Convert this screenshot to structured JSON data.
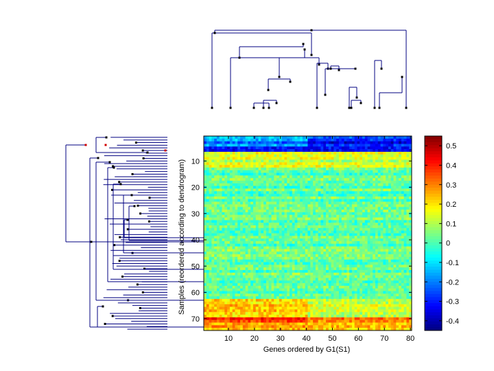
{
  "chart_data": {
    "type": "heatmap",
    "title": "",
    "xlabel": "Genes ordered by G1(S1)",
    "ylabel": "Samples (reordered according to dendrogram)",
    "n_genes": 80,
    "n_samples": 74,
    "x_range": [
      0.5,
      80.5
    ],
    "y_range": [
      0.5,
      74.5
    ],
    "x_ticks": [
      10,
      20,
      30,
      40,
      50,
      60,
      70,
      80
    ],
    "y_ticks": [
      10,
      20,
      30,
      40,
      50,
      60,
      70
    ],
    "color_range": [
      -0.45,
      0.55
    ],
    "colorbar_ticks": [
      -0.4,
      -0.3,
      -0.2,
      -0.1,
      0,
      0.1,
      0.2,
      0.3,
      0.4,
      0.5
    ],
    "colorbar_tick_labels": [
      "-0.4",
      "-0.3",
      "-0.2",
      "-0.1",
      "0",
      "0.1",
      "0.2",
      "0.3",
      "0.4",
      "0.5"
    ],
    "colormap": "jet",
    "row_profile": [
      {
        "rows": [
          1,
          1
        ],
        "left_value": -0.15,
        "right_value": -0.25
      },
      {
        "rows": [
          2,
          4
        ],
        "left_value": -0.2,
        "right_value": -0.33
      },
      {
        "rows": [
          5,
          6
        ],
        "left_value": -0.36,
        "right_value": -0.36
      },
      {
        "rows": [
          7,
          12
        ],
        "left_value": 0.12,
        "right_value": 0.12
      },
      {
        "rows": [
          13,
          62
        ],
        "left_value": 0.02,
        "right_value": 0.02
      },
      {
        "rows": [
          63,
          69
        ],
        "left_value": 0.22,
        "right_value": 0.12
      },
      {
        "rows": [
          70,
          71
        ],
        "left_value": 0.38,
        "right_value": 0.3
      },
      {
        "rows": [
          72,
          74
        ],
        "left_value": 0.25,
        "right_value": 0.22
      }
    ],
    "left_right_split_gene": 40,
    "dendrogram_line_color": "#000080",
    "dendrogram_node_color": "#000000",
    "dendrogram_highlight_color": "#d00000"
  }
}
